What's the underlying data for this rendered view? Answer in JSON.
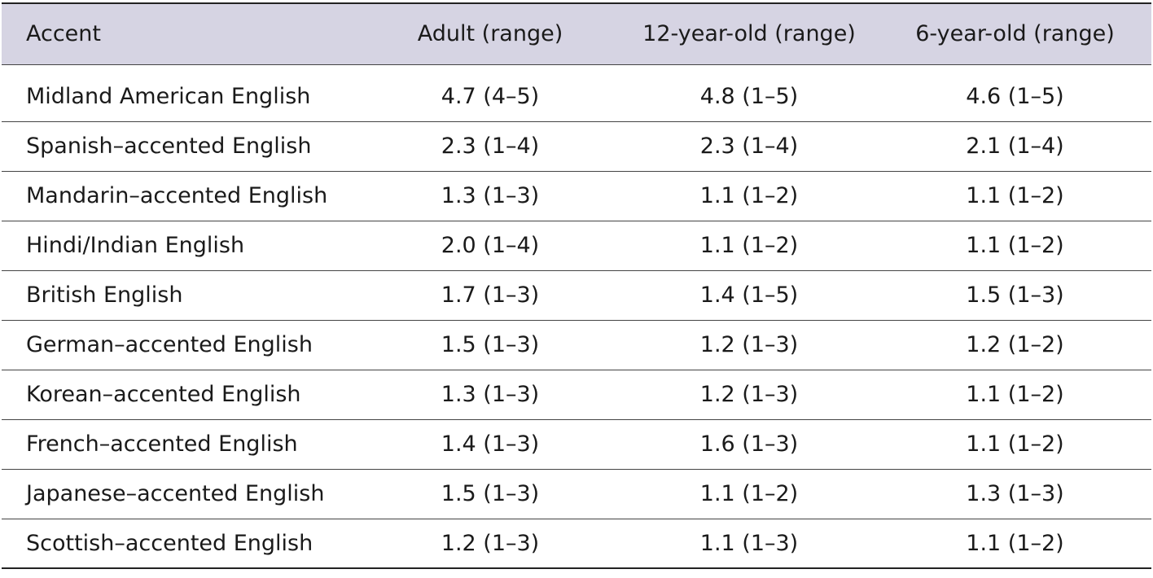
{
  "table": {
    "headers": [
      "Accent",
      "Adult (range)",
      "12-year-old (range)",
      "6-year-old (range)"
    ],
    "rows": [
      [
        "Midland American English",
        "4.7 (4–5)",
        "4.8 (1–5)",
        "4.6 (1–5)"
      ],
      [
        "Spanish–accented English",
        "2.3 (1–4)",
        "2.3 (1–4)",
        "2.1 (1–4)"
      ],
      [
        "Mandarin–accented English",
        "1.3 (1–3)",
        "1.1 (1–2)",
        "1.1 (1–2)"
      ],
      [
        "Hindi/Indian English",
        "2.0 (1–4)",
        "1.1 (1–2)",
        "1.1 (1–2)"
      ],
      [
        "British English",
        "1.7 (1–3)",
        "1.4 (1–5)",
        "1.5 (1–3)"
      ],
      [
        "German–accented English",
        "1.5 (1–3)",
        "1.2 (1–3)",
        "1.2 (1–2)"
      ],
      [
        "Korean–accented English",
        "1.3 (1–3)",
        "1.2 (1–3)",
        "1.1 (1–2)"
      ],
      [
        "French–accented English",
        "1.4 (1–3)",
        "1.6 (1–3)",
        "1.1 (1–2)"
      ],
      [
        "Japanese–accented English",
        "1.5 (1–3)",
        "1.1 (1–2)",
        "1.3 (1–3)"
      ],
      [
        "Scottish–accented English",
        "1.2 (1–3)",
        "1.1 (1–3)",
        "1.1 (1–2)"
      ]
    ]
  },
  "colors": {
    "header_background": "#d6d4e3",
    "rule": "#222222",
    "text": "#1a1a1a"
  }
}
